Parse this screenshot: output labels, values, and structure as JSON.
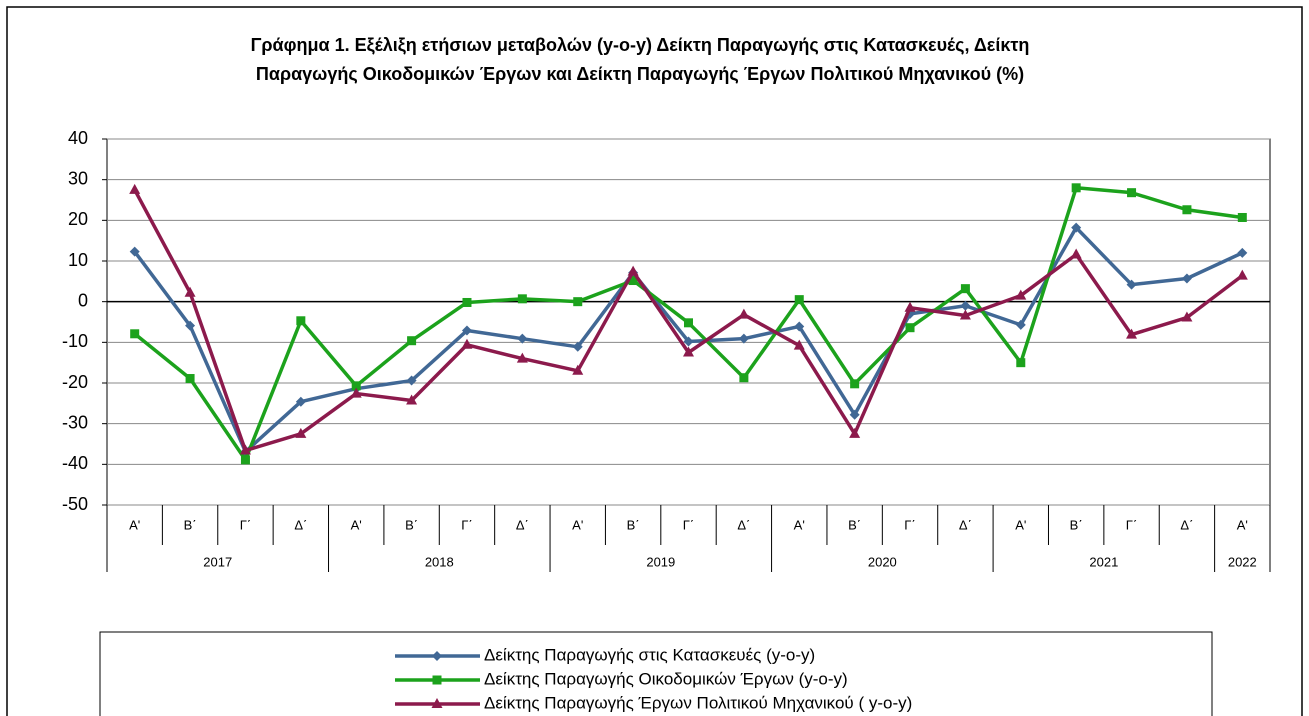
{
  "chart_data": {
    "type": "line",
    "title": [
      "Γράφημα 1. Εξέλιξη ετήσιων μεταβολών (y-o-y) Δείκτη Παραγωγής στις Κατασκευές, Δείκτη",
      "Παραγωγής Οικοδομικών Έργων και  Δείκτη Παραγωγής  Έργων Πολιτικού Μηχανικού (%)"
    ],
    "categories": [
      "Α'",
      "Β΄",
      "Γ΄",
      "Δ΄",
      "Α'",
      "Β΄",
      "Γ΄",
      "Δ΄",
      "Α'",
      "Β΄",
      "Γ΄",
      "Δ΄",
      "Α'",
      "Β΄",
      "Γ΄",
      "Δ΄",
      "Α'",
      "Β΄",
      "Γ΄",
      "Δ΄",
      "Α'"
    ],
    "groups": [
      {
        "label": "2017",
        "count": 4
      },
      {
        "label": "2018",
        "count": 4
      },
      {
        "label": "2019",
        "count": 4
      },
      {
        "label": "2020",
        "count": 4
      },
      {
        "label": "2021",
        "count": 4
      },
      {
        "label": "2022",
        "count": 1
      }
    ],
    "series": [
      {
        "name": "Δείκτης Παραγωγής στις Κατασκευές (y-o-y)",
        "color": "#416895",
        "marker": "diamond",
        "values": [
          12.3,
          -5.9,
          -36.9,
          -24.6,
          -21.4,
          -19.4,
          -7.1,
          -9.1,
          -11.1,
          7.1,
          -9.8,
          -9.1,
          -6.1,
          -27.8,
          -3.0,
          -1.0,
          -5.7,
          18.2,
          4.2,
          5.7,
          12.0
        ]
      },
      {
        "name": "Δείκτης Παραγωγής Οικοδομικών Έργων (y-o-y)",
        "color": "#1ca21c",
        "marker": "square",
        "values": [
          -7.9,
          -18.9,
          -38.9,
          -4.7,
          -20.7,
          -9.6,
          -0.2,
          0.7,
          0.0,
          5.2,
          -5.2,
          -18.7,
          0.5,
          -20.2,
          -6.4,
          3.2,
          -15.0,
          28.0,
          26.8,
          22.6,
          20.7
        ]
      },
      {
        "name": "Δείκτης Παραγωγής Έργων Πολιτικού Μηχανικού ( y-o-y)",
        "color": "#8c1a4c",
        "marker": "triangle",
        "values": [
          27.5,
          2.2,
          -36.6,
          -32.5,
          -22.6,
          -24.3,
          -10.6,
          -14.0,
          -17.0,
          7.4,
          -12.5,
          -3.2,
          -10.8,
          -32.5,
          -1.5,
          -3.4,
          1.5,
          11.6,
          -8.1,
          -3.9,
          6.4
        ]
      }
    ],
    "ylim": [
      -50,
      40
    ],
    "yticks": [
      -50,
      -40,
      -30,
      -20,
      -10,
      0,
      10,
      20,
      30,
      40
    ],
    "grid": true
  }
}
